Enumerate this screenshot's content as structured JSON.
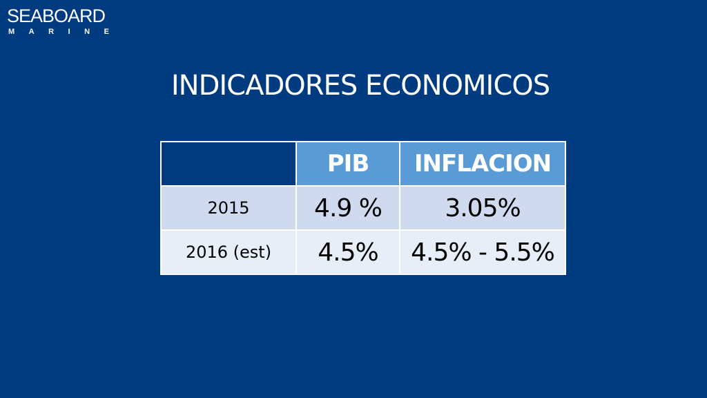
{
  "logo": {
    "name": "SEABOARD",
    "subname": "MARINE",
    "subname_letters": [
      "M",
      "A",
      "R",
      "I",
      "N",
      "E"
    ]
  },
  "slide": {
    "title": "INDICADORES ECONOMICOS"
  },
  "table": {
    "headers": [
      "",
      "PIB",
      "INFLACION"
    ],
    "rows": [
      {
        "year": "2015",
        "pib": "4.9 %",
        "inflacion": "3.05%"
      },
      {
        "year": "2016 (est)",
        "pib": "4.5%",
        "inflacion": "4.5% - 5.5%"
      }
    ]
  },
  "colors": {
    "background": "#003b80",
    "header_cell": "#5b9bd5",
    "row_odd": "#cfdaee",
    "row_even": "#e8eef7",
    "text_light": "#ffffff",
    "text_dark": "#000000"
  }
}
